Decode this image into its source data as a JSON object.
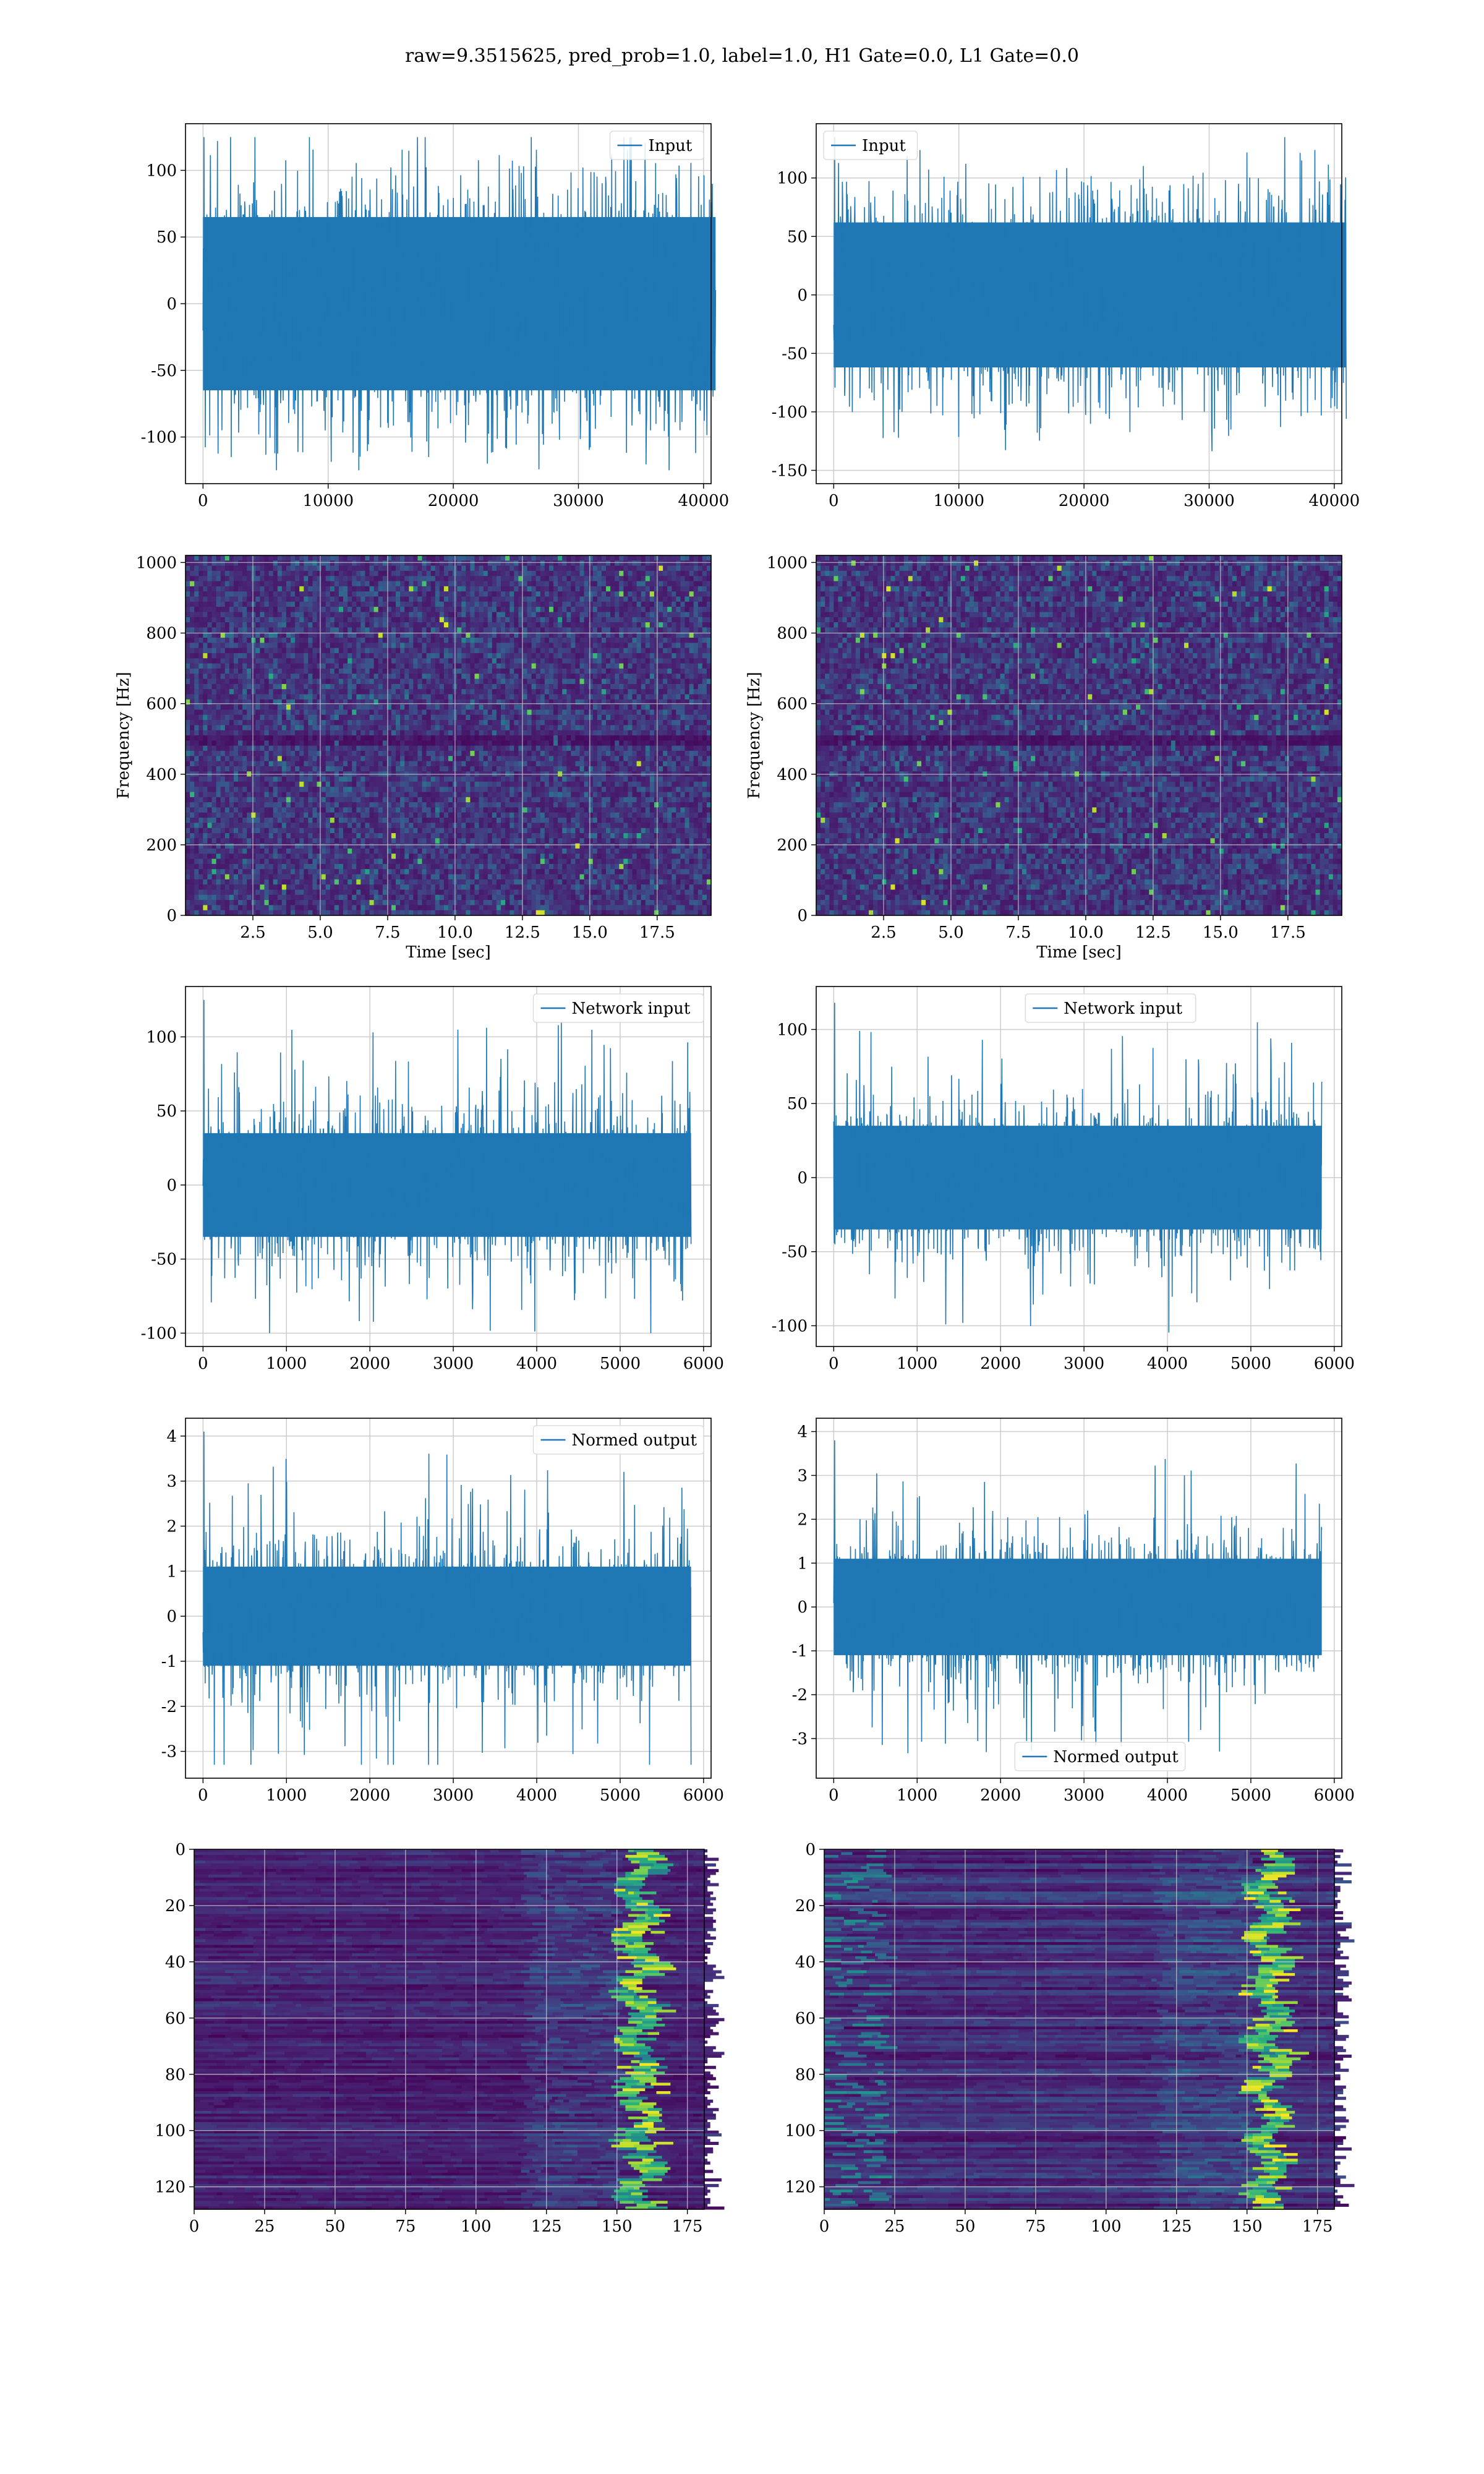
{
  "figure": {
    "title": "raw=9.3515625, pred_prob=1.0, label=1.0, H1 Gate=0.0, L1 Gate=0.0"
  },
  "colors": {
    "line": "#1f77b4",
    "grid": "#cccccc",
    "viridis_low": "#440154",
    "viridis_mid": "#21918c",
    "viridis_high": "#fde725"
  },
  "chart_data": [
    {
      "id": "input-h1",
      "type": "line",
      "series": [
        {
          "name": "Input"
        }
      ],
      "x_range": [
        0,
        40960
      ],
      "ylim": [
        -125,
        125
      ],
      "envelope": {
        "core": 65,
        "peak": 125
      },
      "xticks": [
        0,
        10000,
        20000,
        30000,
        40000
      ],
      "yticks": [
        -100,
        -50,
        0,
        50,
        100
      ],
      "legend": "top-right",
      "grid": true
    },
    {
      "id": "input-l1",
      "type": "line",
      "series": [
        {
          "name": "Input"
        }
      ],
      "x_range": [
        0,
        40960
      ],
      "ylim": [
        -150,
        135
      ],
      "envelope": {
        "core": 62,
        "peak": 135
      },
      "xticks": [
        0,
        10000,
        20000,
        30000,
        40000
      ],
      "yticks": [
        -150,
        -100,
        -50,
        0,
        50,
        100
      ],
      "legend": "top-left",
      "grid": true
    },
    {
      "id": "spectrogram-h1",
      "type": "heatmap",
      "xlabel": "Time [sec]",
      "ylabel": "Frequency [Hz]",
      "xlim": [
        0,
        19.5
      ],
      "ylim": [
        0,
        1020
      ],
      "xticks": [
        "2.5",
        "5.0",
        "7.5",
        "10.0",
        "12.5",
        "15.0",
        "17.5"
      ],
      "yticks": [
        0,
        200,
        400,
        600,
        800,
        1000
      ],
      "colormap": "viridis",
      "grid": true
    },
    {
      "id": "spectrogram-l1",
      "type": "heatmap",
      "xlabel": "Time [sec]",
      "ylabel": "Frequency [Hz]",
      "xlim": [
        0,
        19.5
      ],
      "ylim": [
        0,
        1020
      ],
      "xticks": [
        "2.5",
        "5.0",
        "7.5",
        "10.0",
        "12.5",
        "15.0",
        "17.5"
      ],
      "yticks": [
        0,
        200,
        400,
        600,
        800,
        1000
      ],
      "colormap": "viridis",
      "grid": true
    },
    {
      "id": "network-input-h1",
      "type": "line",
      "series": [
        {
          "name": "Network input"
        }
      ],
      "x_range": [
        0,
        5850
      ],
      "ylim": [
        -100,
        125
      ],
      "envelope": {
        "core": 35,
        "peak": 125
      },
      "xticks": [
        0,
        1000,
        2000,
        3000,
        4000,
        5000,
        6000
      ],
      "yticks": [
        -100,
        -50,
        0,
        50,
        100
      ],
      "legend": "top-right",
      "grid": true
    },
    {
      "id": "network-input-l1",
      "type": "line",
      "series": [
        {
          "name": "Network input"
        }
      ],
      "x_range": [
        0,
        5850
      ],
      "ylim": [
        -105,
        120
      ],
      "envelope": {
        "core": 35,
        "peak": 118
      },
      "xticks": [
        0,
        1000,
        2000,
        3000,
        4000,
        5000,
        6000
      ],
      "yticks": [
        -100,
        -50,
        0,
        50,
        100
      ],
      "legend": "top-center",
      "grid": true
    },
    {
      "id": "normed-output-h1",
      "type": "line",
      "series": [
        {
          "name": "Normed output"
        }
      ],
      "x_range": [
        0,
        5850
      ],
      "ylim": [
        -3.3,
        4.1
      ],
      "envelope": {
        "core": 1.1,
        "peak": 4.1
      },
      "xticks": [
        0,
        1000,
        2000,
        3000,
        4000,
        5000,
        6000
      ],
      "yticks": [
        -3,
        -2,
        -1,
        0,
        1,
        2,
        3,
        4
      ],
      "legend": "top-right",
      "grid": true
    },
    {
      "id": "normed-output-l1",
      "type": "line",
      "series": [
        {
          "name": "Normed output"
        }
      ],
      "x_range": [
        0,
        5850
      ],
      "ylim": [
        -3.6,
        4.0
      ],
      "envelope": {
        "core": 1.1,
        "peak": 3.8
      },
      "xticks": [
        0,
        1000,
        2000,
        3000,
        4000,
        5000,
        6000
      ],
      "yticks": [
        -3,
        -2,
        -1,
        0,
        1,
        2,
        3,
        4
      ],
      "legend": "bottom-center",
      "grid": true
    },
    {
      "id": "feature-map-h1",
      "type": "heatmap",
      "xlim": [
        0,
        181
      ],
      "ylim": [
        128,
        0
      ],
      "xticks": [
        0,
        25,
        50,
        75,
        100,
        125,
        150,
        175
      ],
      "yticks": [
        0,
        20,
        40,
        60,
        80,
        100,
        120
      ],
      "colormap": "viridis",
      "grid": true
    },
    {
      "id": "feature-map-l1",
      "type": "heatmap",
      "xlim": [
        0,
        181
      ],
      "ylim": [
        128,
        0
      ],
      "xticks": [
        0,
        25,
        50,
        75,
        100,
        125,
        150,
        175
      ],
      "yticks": [
        0,
        20,
        40,
        60,
        80,
        100,
        120
      ],
      "colormap": "viridis",
      "grid": true
    }
  ]
}
